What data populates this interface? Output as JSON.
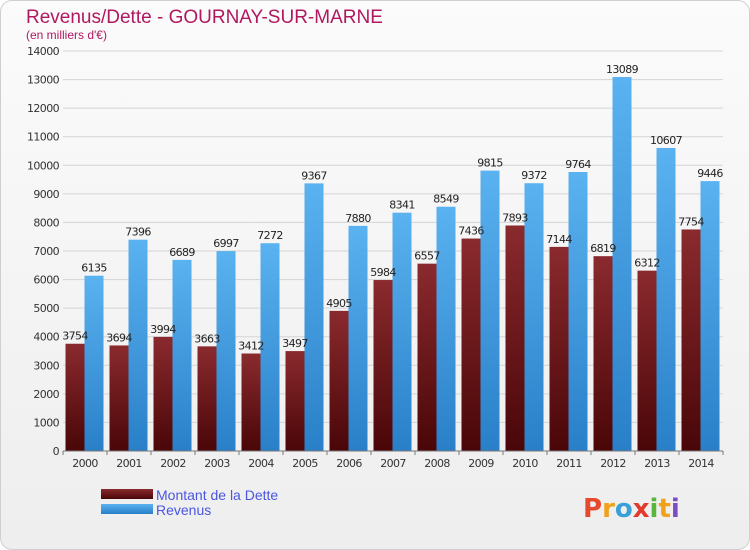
{
  "chart_data": {
    "type": "bar",
    "title": "Revenus/Dette - GOURNAY-SUR-MARNE",
    "subtitle": "(en milliers d'€)",
    "categories": [
      "2000",
      "2001",
      "2002",
      "2003",
      "2004",
      "2005",
      "2006",
      "2007",
      "2008",
      "2009",
      "2010",
      "2011",
      "2012",
      "2013",
      "2014"
    ],
    "series": [
      {
        "name": "Montant de la Dette",
        "color": "#6e1a1e",
        "values": [
          3754,
          3694,
          3994,
          3663,
          3412,
          3497,
          4905,
          5984,
          6557,
          7436,
          7893,
          7144,
          6819,
          6312,
          7754
        ],
        "labels": [
          "3754",
          "3694",
          "3994",
          "3663",
          "3412",
          "3497",
          "4905",
          "5984",
          "6557",
          "7436",
          "7893",
          "7144",
          "6819",
          "6312",
          "7754"
        ]
      },
      {
        "name": "Revenus",
        "color": "#3d9be6",
        "values": [
          6135,
          7396,
          6689,
          6997,
          7272,
          9367,
          7880,
          8341,
          8549,
          9815,
          9372,
          9764,
          13089,
          10607,
          9446
        ],
        "labels": [
          "6135",
          "7396",
          "6689",
          "6997",
          "7272",
          "9367",
          "7880",
          "8341",
          "8549",
          "9815",
          "9372",
          "9764",
          "13089",
          "10607",
          "9446"
        ]
      }
    ],
    "yticks": [
      "0",
      "1000",
      "2000",
      "3000",
      "4000",
      "5000",
      "6000",
      "7000",
      "8000",
      "9000",
      "10000",
      "11000",
      "12000",
      "13000",
      "14000"
    ],
    "ylim": [
      0,
      14000
    ],
    "grid": true,
    "legend_position": "bottom-left"
  },
  "logo": {
    "letters": [
      "P",
      "r",
      "o",
      "x",
      "i",
      "t",
      "i"
    ],
    "colors": [
      "#e64a2e",
      "#f0a21b",
      "#3aa0d8",
      "#e23a2c",
      "#5ab53c",
      "#f0a21b",
      "#7a4fc4"
    ]
  }
}
